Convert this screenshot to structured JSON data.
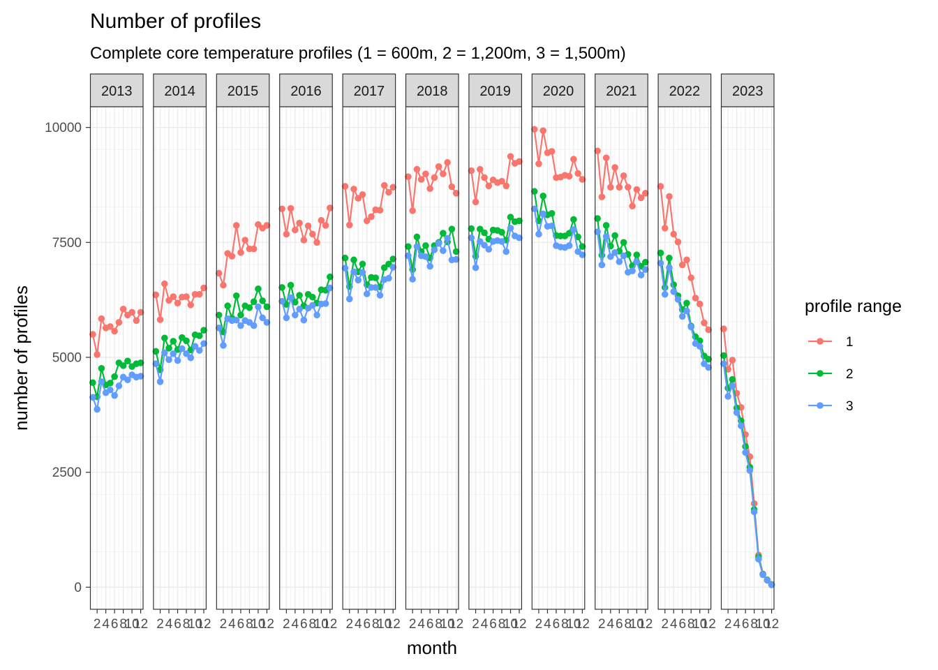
{
  "chart_data": {
    "type": "line",
    "title": "Number of profiles",
    "subtitle": "Complete core temperature profiles (1 = 600m, 2 = 1,200m, 3 = 1,500m)",
    "xlabel": "month",
    "ylabel": "number of profiles",
    "facets": [
      "2013",
      "2014",
      "2015",
      "2016",
      "2017",
      "2018",
      "2019",
      "2020",
      "2021",
      "2022",
      "2023"
    ],
    "facet_x_ticks": [
      "2",
      "4",
      "6",
      "8",
      "10",
      "12"
    ],
    "x_range": [
      1,
      12
    ],
    "y_ticks": [
      0,
      2500,
      5000,
      7500,
      10000
    ],
    "y_tick_labels": [
      "0",
      "2500",
      "5000",
      "7500",
      "10000"
    ],
    "ylim": [
      -480,
      10450
    ],
    "grid": true,
    "legend": {
      "title": "profile range",
      "position": "right"
    },
    "series": [
      {
        "name": "1",
        "color": "#F8766D",
        "values": {
          "2013": [
            5500,
            5060,
            5840,
            5640,
            5670,
            5570,
            5760,
            6050,
            5920,
            5980,
            5800,
            5980
          ],
          "2014": [
            6360,
            5820,
            6600,
            6240,
            6320,
            6180,
            6310,
            6320,
            6140,
            6370,
            6370,
            6510
          ],
          "2015": [
            6830,
            6570,
            7260,
            7200,
            7870,
            7280,
            7550,
            7360,
            7360,
            7890,
            7810,
            7870
          ],
          "2016": [
            8230,
            7680,
            8240,
            7770,
            7920,
            7550,
            7860,
            7680,
            7500,
            7980,
            7870,
            8250
          ],
          "2017": [
            8720,
            7880,
            8660,
            8460,
            8540,
            7970,
            8060,
            8210,
            8200,
            8740,
            8590,
            8700
          ],
          "2018": [
            8930,
            8190,
            9090,
            8870,
            8990,
            8670,
            8910,
            9150,
            8990,
            9240,
            8710,
            8570
          ],
          "2019": [
            9060,
            8380,
            9090,
            8910,
            8730,
            8860,
            8800,
            8830,
            8730,
            9370,
            9220,
            9260
          ],
          "2020": [
            9960,
            9210,
            9930,
            9450,
            9480,
            8910,
            8920,
            8960,
            8940,
            9310,
            9000,
            8870
          ],
          "2021": [
            9490,
            8490,
            9340,
            8700,
            9130,
            8700,
            8950,
            8700,
            8290,
            8650,
            8470,
            8570
          ],
          "2022": [
            8720,
            7810,
            8500,
            7680,
            7510,
            7010,
            7120,
            6730,
            6290,
            6160,
            5750,
            5600
          ],
          "2023": [
            5620,
            4740,
            4940,
            4220,
            3910,
            3320,
            2840,
            1820,
            700,
            290,
            150,
            60
          ]
        }
      },
      {
        "name": "2",
        "color": "#00BA38",
        "values": {
          "2013": [
            4450,
            4140,
            4760,
            4400,
            4440,
            4580,
            4880,
            4820,
            4920,
            4800,
            4860,
            4880
          ],
          "2014": [
            5130,
            4730,
            5420,
            5200,
            5350,
            5170,
            5430,
            5360,
            5160,
            5490,
            5470,
            5590
          ],
          "2015": [
            5920,
            5550,
            6120,
            5850,
            6340,
            5920,
            6120,
            6080,
            6210,
            6490,
            6230,
            6100
          ],
          "2016": [
            6520,
            6150,
            6570,
            6200,
            6350,
            6120,
            6370,
            6310,
            6180,
            6470,
            6460,
            6750
          ],
          "2017": [
            7160,
            6540,
            7120,
            6860,
            7030,
            6580,
            6740,
            6730,
            6530,
            6950,
            7030,
            7140
          ],
          "2018": [
            7410,
            6910,
            7620,
            7300,
            7430,
            7160,
            7430,
            7500,
            7700,
            7510,
            7790,
            7300
          ],
          "2019": [
            7800,
            7200,
            7790,
            7710,
            7570,
            7770,
            7760,
            7720,
            7550,
            8050,
            7950,
            7970
          ],
          "2020": [
            8610,
            7970,
            8510,
            8100,
            8130,
            7650,
            7640,
            7640,
            7700,
            8000,
            7620,
            7410
          ],
          "2021": [
            8020,
            7220,
            7870,
            7420,
            7650,
            7310,
            7500,
            7240,
            6990,
            7230,
            6980,
            7070
          ],
          "2022": [
            7270,
            6520,
            7160,
            6580,
            6340,
            6040,
            6180,
            5680,
            5450,
            5360,
            5030,
            4960
          ],
          "2023": [
            5040,
            4330,
            4520,
            3900,
            3620,
            3060,
            2610,
            1690,
            660,
            280,
            160,
            60
          ]
        }
      },
      {
        "name": "3",
        "color": "#619CFF",
        "values": {
          "2013": [
            4130,
            3870,
            4470,
            4230,
            4290,
            4170,
            4380,
            4570,
            4510,
            4620,
            4570,
            4590
          ],
          "2014": [
            4860,
            4470,
            5100,
            4950,
            5080,
            4930,
            5190,
            5080,
            4990,
            5240,
            5150,
            5300
          ],
          "2015": [
            5640,
            5260,
            5840,
            5800,
            5810,
            5690,
            5800,
            5760,
            5690,
            6100,
            5860,
            5760
          ],
          "2016": [
            6220,
            5860,
            6300,
            5920,
            6050,
            5810,
            6070,
            6130,
            5920,
            6160,
            6170,
            6510
          ],
          "2017": [
            6940,
            6270,
            6860,
            6680,
            6850,
            6380,
            6520,
            6520,
            6350,
            6690,
            6720,
            6960
          ],
          "2018": [
            7210,
            6700,
            7410,
            7210,
            7190,
            6980,
            7340,
            7480,
            7320,
            7590,
            7120,
            7130
          ],
          "2019": [
            7600,
            6950,
            7520,
            7440,
            7350,
            7520,
            7540,
            7520,
            7300,
            7810,
            7640,
            7600
          ],
          "2020": [
            8230,
            7680,
            8120,
            7850,
            7860,
            7430,
            7400,
            7390,
            7430,
            7780,
            7300,
            7230
          ],
          "2021": [
            7730,
            7010,
            7630,
            7190,
            7280,
            7080,
            7210,
            6850,
            6880,
            7080,
            6790,
            6910
          ],
          "2022": [
            7050,
            6370,
            6950,
            6430,
            6260,
            5890,
            6010,
            5660,
            5300,
            5240,
            4860,
            4780
          ],
          "2023": [
            4860,
            4150,
            4380,
            3800,
            3510,
            2930,
            2540,
            1640,
            610,
            270,
            150,
            50
          ]
        }
      }
    ]
  }
}
